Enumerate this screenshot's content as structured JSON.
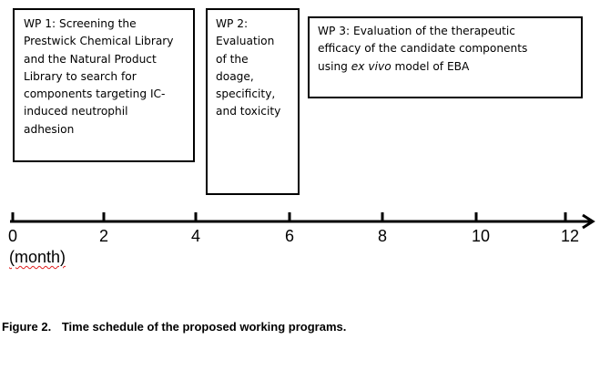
{
  "work_packages": [
    {
      "lines": [
        "WP 1: Screening the",
        "Prestwick Chemical Library",
        "and the Natural Product",
        "Library to search for",
        "components  targeting IC-",
        "induced  neutrophil",
        "adhesion"
      ]
    },
    {
      "lines": [
        "WP 2:",
        "Evaluation",
        "of the",
        "doage,",
        "specificity,",
        "and toxicity"
      ]
    },
    {
      "lines": [
        "WP 3: Evaluation of the therapeutic",
        "efficacy of the candidate components"
      ],
      "line3_pre": "using ",
      "line3_italic": "ex vivo",
      "line3_post": " model of EBA"
    }
  ],
  "timeline": {
    "ticks": [
      "0",
      "2",
      "4",
      "6",
      "8",
      "10",
      "12"
    ],
    "unit_label": "(month)"
  },
  "caption": {
    "label": "Figure 2.",
    "text": "Time schedule of the proposed working programs."
  }
}
